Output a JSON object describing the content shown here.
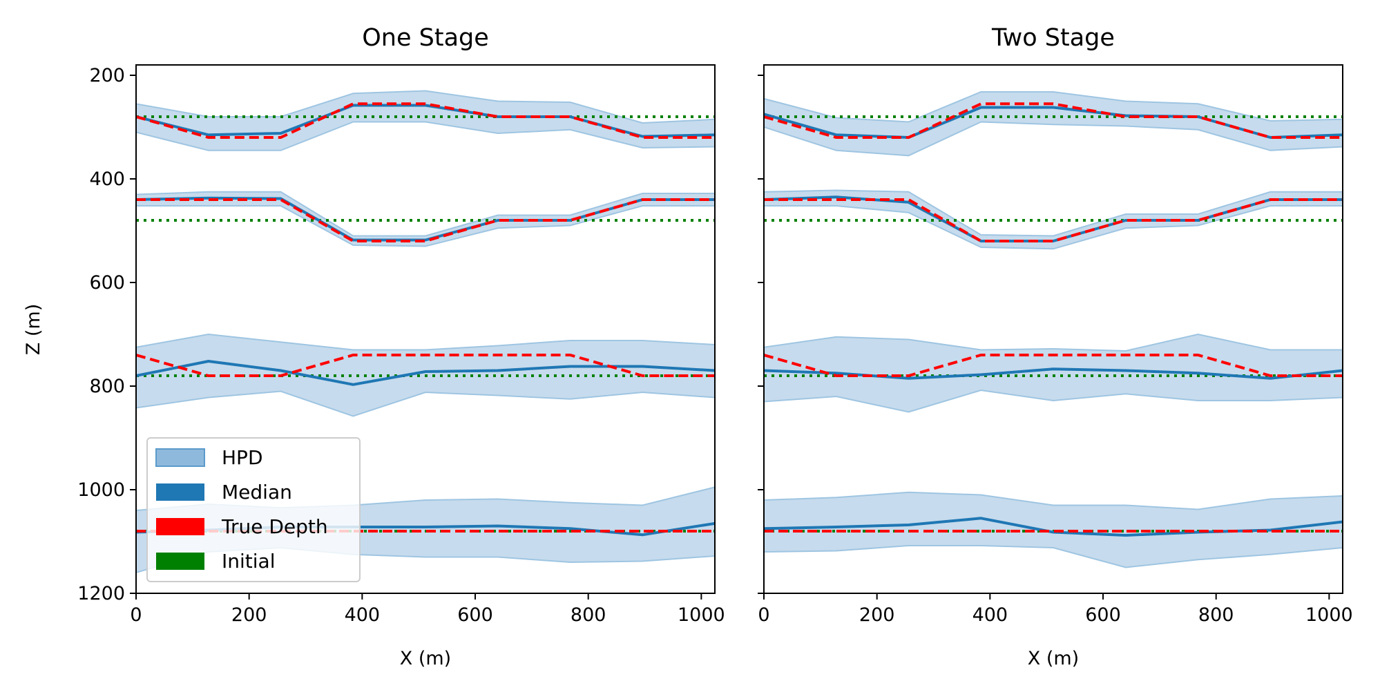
{
  "chart_data": [
    {
      "type": "line",
      "title": "One Stage",
      "xlabel": "X (m)",
      "ylabel": "Z (m)",
      "xlim": [
        0,
        1024
      ],
      "ylim": [
        1200,
        180
      ],
      "y_inverted": true,
      "xticks": [
        "0",
        "200",
        "400",
        "600",
        "800",
        "1000"
      ],
      "yticks": [
        "200",
        "400",
        "600",
        "800",
        "1000",
        "1200"
      ],
      "x": [
        0,
        128,
        256,
        384,
        512,
        640,
        768,
        896,
        1024
      ],
      "layers": [
        {
          "hpd_upper": [
            255,
            280,
            280,
            235,
            230,
            250,
            252,
            292,
            285
          ],
          "hpd_lower": [
            310,
            345,
            345,
            290,
            290,
            312,
            305,
            340,
            338
          ],
          "median": [
            280,
            315,
            312,
            258,
            258,
            280,
            280,
            318,
            315
          ],
          "true_depth": [
            280,
            320,
            320,
            255,
            255,
            280,
            280,
            320,
            320
          ],
          "initial": 280
        },
        {
          "hpd_upper": [
            430,
            425,
            425,
            510,
            510,
            470,
            470,
            428,
            428
          ],
          "hpd_lower": [
            452,
            452,
            452,
            528,
            530,
            495,
            490,
            452,
            452
          ],
          "median": [
            440,
            437,
            438,
            518,
            518,
            480,
            480,
            440,
            440
          ],
          "true_depth": [
            440,
            440,
            440,
            520,
            520,
            480,
            480,
            440,
            440
          ],
          "initial": 480
        },
        {
          "hpd_upper": [
            725,
            700,
            715,
            730,
            730,
            722,
            712,
            712,
            720
          ],
          "hpd_lower": [
            842,
            822,
            810,
            858,
            812,
            818,
            825,
            812,
            822
          ],
          "median": [
            780,
            752,
            770,
            797,
            772,
            770,
            762,
            762,
            770
          ],
          "true_depth": [
            740,
            780,
            780,
            740,
            740,
            740,
            740,
            780,
            780
          ],
          "initial": 780
        },
        {
          "hpd_upper": [
            1040,
            1028,
            1035,
            1030,
            1020,
            1018,
            1025,
            1030,
            995
          ],
          "hpd_lower": [
            1160,
            1120,
            1112,
            1125,
            1130,
            1130,
            1140,
            1138,
            1128
          ],
          "median": [
            1082,
            1078,
            1072,
            1072,
            1072,
            1070,
            1075,
            1087,
            1065
          ],
          "true_depth": [
            1080,
            1080,
            1080,
            1080,
            1080,
            1080,
            1080,
            1080,
            1080
          ],
          "initial": 1080
        }
      ],
      "legend": {
        "placement": "lower-left",
        "entries": [
          "HPD",
          "Median",
          "True Depth",
          "Initial"
        ]
      }
    },
    {
      "type": "line",
      "title": "Two Stage",
      "xlabel": "X (m)",
      "xlim": [
        0,
        1024
      ],
      "ylim": [
        1200,
        180
      ],
      "y_inverted": true,
      "xticks": [
        "0",
        "200",
        "400",
        "600",
        "800",
        "1000"
      ],
      "x": [
        0,
        128,
        256,
        384,
        512,
        640,
        768,
        896,
        1024
      ],
      "layers": [
        {
          "hpd_upper": [
            245,
            282,
            290,
            232,
            232,
            250,
            255,
            288,
            285
          ],
          "hpd_lower": [
            300,
            345,
            355,
            290,
            295,
            298,
            305,
            345,
            338
          ],
          "median": [
            275,
            315,
            320,
            262,
            262,
            278,
            280,
            320,
            315
          ],
          "true_depth": [
            280,
            320,
            320,
            255,
            255,
            280,
            280,
            320,
            320
          ],
          "initial": 280
        },
        {
          "hpd_upper": [
            425,
            422,
            425,
            508,
            510,
            468,
            468,
            425,
            425
          ],
          "hpd_lower": [
            452,
            452,
            465,
            532,
            535,
            495,
            490,
            452,
            452
          ],
          "median": [
            440,
            435,
            445,
            520,
            520,
            480,
            480,
            440,
            440
          ],
          "true_depth": [
            440,
            440,
            440,
            520,
            520,
            480,
            480,
            440,
            440
          ],
          "initial": 480
        },
        {
          "hpd_upper": [
            725,
            705,
            710,
            730,
            728,
            732,
            700,
            730,
            730
          ],
          "hpd_lower": [
            830,
            820,
            850,
            808,
            828,
            815,
            828,
            828,
            822
          ],
          "median": [
            770,
            775,
            785,
            778,
            767,
            770,
            775,
            785,
            770
          ],
          "true_depth": [
            740,
            780,
            780,
            740,
            740,
            740,
            740,
            780,
            780
          ],
          "initial": 780
        },
        {
          "hpd_upper": [
            1020,
            1015,
            1005,
            1010,
            1030,
            1030,
            1038,
            1018,
            1012
          ],
          "hpd_lower": [
            1120,
            1118,
            1108,
            1108,
            1112,
            1150,
            1135,
            1125,
            1112
          ],
          "median": [
            1075,
            1072,
            1068,
            1055,
            1082,
            1088,
            1082,
            1078,
            1062
          ],
          "true_depth": [
            1080,
            1080,
            1080,
            1080,
            1080,
            1080,
            1080,
            1080,
            1080
          ],
          "initial": 1080
        }
      ]
    }
  ],
  "colors": {
    "hpd_fill": "#c6dbed",
    "hpd_edge": "#9ec5e2",
    "median": "#1f77b4",
    "true_depth": "#ff0000",
    "initial": "#008000",
    "legend_hpd_fill": "#8fb9dc"
  }
}
